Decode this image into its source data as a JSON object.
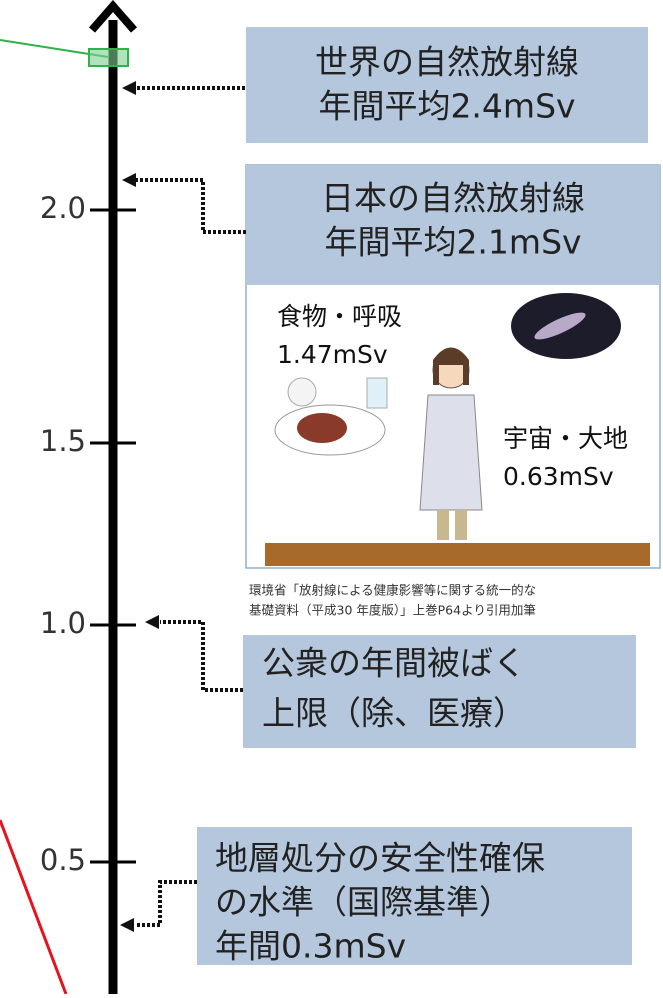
{
  "axis": {
    "ticks": [
      "2.0",
      "1.5",
      "1.0",
      "0.5"
    ]
  },
  "boxes": [
    {
      "lines": [
        "世界の自然放射線",
        "年間平均2.4mSv"
      ]
    },
    {
      "lines": [
        "日本の自然放射線",
        "年間平均2.1mSv"
      ]
    },
    {
      "lines": [
        "公衆の年間被ばく",
        "上限（除、医療）"
      ]
    },
    {
      "lines": [
        "地層処分の安全性確保",
        "の水準（国際基準）",
        "年間0.3mSv"
      ]
    }
  ],
  "illustration": {
    "food": [
      "食物・呼吸",
      "1.47mSv"
    ],
    "cosmic": [
      "宇宙・大地",
      "0.63mSv"
    ]
  },
  "caption": [
    "環境省「放射線による健康影響等に関する統一的な",
    "基礎資料（平成30 年度版）」上巻P64より引用加筆"
  ]
}
